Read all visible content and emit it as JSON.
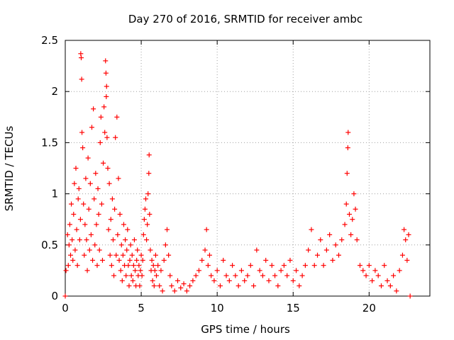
{
  "chart_data": {
    "type": "scatter",
    "title": "Day 270 of 2016, SRMTID for receiver ambc",
    "xlabel": "GPS time / hours",
    "ylabel": "SRMTID / TECUs",
    "xlim": [
      0,
      24
    ],
    "ylim": [
      0,
      2.5
    ],
    "xticks": [
      "0",
      "5",
      "10",
      "15",
      "20"
    ],
    "yticks": [
      "0",
      "0.5",
      "1",
      "1.5",
      "2",
      "2.5"
    ],
    "grid": true,
    "marker": "+",
    "color": "#ff0000",
    "series": [
      {
        "name": "SRMTID",
        "points": [
          [
            0.0,
            0.0
          ],
          [
            0.05,
            0.25
          ],
          [
            0.15,
            0.6
          ],
          [
            0.2,
            0.3
          ],
          [
            0.25,
            0.5
          ],
          [
            0.3,
            0.7
          ],
          [
            0.35,
            0.4
          ],
          [
            0.4,
            0.9
          ],
          [
            0.45,
            0.55
          ],
          [
            0.5,
            0.35
          ],
          [
            0.55,
            0.8
          ],
          [
            0.6,
            1.1
          ],
          [
            0.65,
            0.45
          ],
          [
            0.7,
            1.25
          ],
          [
            0.75,
            0.65
          ],
          [
            0.8,
            0.3
          ],
          [
            0.85,
            0.95
          ],
          [
            0.9,
            1.05
          ],
          [
            0.95,
            0.55
          ],
          [
            1.0,
            0.75
          ],
          [
            1.02,
            2.37
          ],
          [
            1.05,
            2.33
          ],
          [
            1.08,
            2.12
          ],
          [
            1.1,
            1.6
          ],
          [
            1.15,
            1.45
          ],
          [
            1.2,
            0.9
          ],
          [
            1.25,
            0.4
          ],
          [
            1.3,
            0.7
          ],
          [
            1.35,
            1.15
          ],
          [
            1.4,
            0.55
          ],
          [
            1.45,
            0.25
          ],
          [
            1.5,
            1.35
          ],
          [
            1.55,
            0.85
          ],
          [
            1.6,
            0.45
          ],
          [
            1.65,
            1.1
          ],
          [
            1.7,
            0.6
          ],
          [
            1.75,
            1.65
          ],
          [
            1.8,
            0.35
          ],
          [
            1.85,
            1.83
          ],
          [
            1.9,
            0.95
          ],
          [
            1.95,
            0.5
          ],
          [
            2.0,
            1.2
          ],
          [
            2.05,
            0.7
          ],
          [
            2.1,
            0.3
          ],
          [
            2.15,
            1.05
          ],
          [
            2.2,
            0.8
          ],
          [
            2.25,
            0.45
          ],
          [
            2.3,
            1.5
          ],
          [
            2.35,
            1.75
          ],
          [
            2.4,
            0.9
          ],
          [
            2.45,
            0.35
          ],
          [
            2.5,
            1.3
          ],
          [
            2.55,
            1.85
          ],
          [
            2.6,
            1.6
          ],
          [
            2.65,
            2.3
          ],
          [
            2.68,
            2.18
          ],
          [
            2.7,
            1.95
          ],
          [
            2.72,
            2.05
          ],
          [
            2.75,
            1.55
          ],
          [
            2.8,
            1.25
          ],
          [
            2.85,
            0.65
          ],
          [
            2.9,
            1.1
          ],
          [
            2.95,
            0.4
          ],
          [
            3.0,
            0.75
          ],
          [
            3.05,
            0.3
          ],
          [
            3.1,
            0.95
          ],
          [
            3.15,
            0.55
          ],
          [
            3.2,
            0.2
          ],
          [
            3.25,
            0.85
          ],
          [
            3.3,
            1.55
          ],
          [
            3.35,
            0.4
          ],
          [
            3.4,
            1.75
          ],
          [
            3.45,
            0.6
          ],
          [
            3.5,
            1.15
          ],
          [
            3.55,
            0.35
          ],
          [
            3.6,
            0.8
          ],
          [
            3.65,
            0.25
          ],
          [
            3.7,
            0.5
          ],
          [
            3.75,
            0.15
          ],
          [
            3.8,
            0.4
          ],
          [
            3.85,
            0.7
          ],
          [
            3.9,
            0.3
          ],
          [
            3.95,
            0.55
          ],
          [
            4.0,
            0.2
          ],
          [
            4.05,
            0.45
          ],
          [
            4.1,
            0.65
          ],
          [
            4.15,
            0.3
          ],
          [
            4.2,
            0.1
          ],
          [
            4.25,
            0.35
          ],
          [
            4.3,
            0.5
          ],
          [
            4.35,
            0.2
          ],
          [
            4.4,
            0.4
          ],
          [
            4.45,
            0.15
          ],
          [
            4.5,
            0.3
          ],
          [
            4.55,
            0.55
          ],
          [
            4.6,
            0.25
          ],
          [
            4.65,
            0.1
          ],
          [
            4.7,
            0.35
          ],
          [
            4.75,
            0.45
          ],
          [
            4.8,
            0.2
          ],
          [
            4.85,
            0.3
          ],
          [
            4.9,
            0.1
          ],
          [
            4.95,
            0.25
          ],
          [
            5.0,
            0.4
          ],
          [
            5.05,
            0.2
          ],
          [
            5.1,
            0.35
          ],
          [
            5.15,
            0.6
          ],
          [
            5.2,
            0.75
          ],
          [
            5.25,
            0.85
          ],
          [
            5.3,
            0.95
          ],
          [
            5.35,
            0.55
          ],
          [
            5.4,
            0.7
          ],
          [
            5.45,
            1.0
          ],
          [
            5.5,
            1.2
          ],
          [
            5.52,
            1.38
          ],
          [
            5.55,
            0.8
          ],
          [
            5.6,
            0.45
          ],
          [
            5.65,
            0.25
          ],
          [
            5.7,
            0.35
          ],
          [
            5.75,
            0.15
          ],
          [
            5.8,
            0.3
          ],
          [
            5.85,
            0.1
          ],
          [
            5.9,
            0.25
          ],
          [
            5.95,
            0.4
          ],
          [
            6.0,
            0.2
          ],
          [
            6.1,
            0.3
          ],
          [
            6.2,
            0.1
          ],
          [
            6.3,
            0.25
          ],
          [
            6.4,
            0.05
          ],
          [
            6.5,
            0.35
          ],
          [
            6.6,
            0.5
          ],
          [
            6.7,
            0.65
          ],
          [
            6.8,
            0.4
          ],
          [
            6.9,
            0.2
          ],
          [
            7.0,
            0.1
          ],
          [
            7.2,
            0.05
          ],
          [
            7.4,
            0.15
          ],
          [
            7.6,
            0.08
          ],
          [
            7.8,
            0.12
          ],
          [
            8.0,
            0.05
          ],
          [
            8.2,
            0.1
          ],
          [
            8.4,
            0.15
          ],
          [
            8.6,
            0.2
          ],
          [
            8.8,
            0.25
          ],
          [
            9.0,
            0.35
          ],
          [
            9.2,
            0.45
          ],
          [
            9.3,
            0.65
          ],
          [
            9.4,
            0.3
          ],
          [
            9.5,
            0.4
          ],
          [
            9.6,
            0.2
          ],
          [
            9.8,
            0.15
          ],
          [
            10.0,
            0.25
          ],
          [
            10.2,
            0.1
          ],
          [
            10.4,
            0.35
          ],
          [
            10.6,
            0.2
          ],
          [
            10.8,
            0.15
          ],
          [
            11.0,
            0.3
          ],
          [
            11.2,
            0.2
          ],
          [
            11.4,
            0.1
          ],
          [
            11.6,
            0.25
          ],
          [
            11.8,
            0.15
          ],
          [
            12.0,
            0.2
          ],
          [
            12.2,
            0.3
          ],
          [
            12.4,
            0.1
          ],
          [
            12.6,
            0.45
          ],
          [
            12.8,
            0.25
          ],
          [
            13.0,
            0.2
          ],
          [
            13.2,
            0.35
          ],
          [
            13.4,
            0.15
          ],
          [
            13.6,
            0.3
          ],
          [
            13.8,
            0.2
          ],
          [
            14.0,
            0.1
          ],
          [
            14.2,
            0.25
          ],
          [
            14.4,
            0.3
          ],
          [
            14.6,
            0.2
          ],
          [
            14.8,
            0.35
          ],
          [
            15.0,
            0.15
          ],
          [
            15.2,
            0.25
          ],
          [
            15.4,
            0.1
          ],
          [
            15.6,
            0.2
          ],
          [
            15.8,
            0.3
          ],
          [
            16.0,
            0.45
          ],
          [
            16.2,
            0.65
          ],
          [
            16.4,
            0.3
          ],
          [
            16.6,
            0.4
          ],
          [
            16.8,
            0.55
          ],
          [
            17.0,
            0.3
          ],
          [
            17.2,
            0.45
          ],
          [
            17.4,
            0.6
          ],
          [
            17.6,
            0.35
          ],
          [
            17.8,
            0.5
          ],
          [
            18.0,
            0.4
          ],
          [
            18.2,
            0.55
          ],
          [
            18.4,
            0.7
          ],
          [
            18.5,
            0.9
          ],
          [
            18.55,
            1.2
          ],
          [
            18.6,
            1.45
          ],
          [
            18.62,
            1.6
          ],
          [
            18.7,
            0.8
          ],
          [
            18.8,
            0.6
          ],
          [
            18.9,
            0.75
          ],
          [
            19.0,
            1.0
          ],
          [
            19.1,
            0.85
          ],
          [
            19.2,
            0.55
          ],
          [
            19.4,
            0.3
          ],
          [
            19.6,
            0.25
          ],
          [
            19.8,
            0.2
          ],
          [
            20.0,
            0.3
          ],
          [
            20.2,
            0.15
          ],
          [
            20.4,
            0.25
          ],
          [
            20.6,
            0.2
          ],
          [
            20.8,
            0.1
          ],
          [
            21.0,
            0.3
          ],
          [
            21.2,
            0.15
          ],
          [
            21.4,
            0.1
          ],
          [
            21.6,
            0.2
          ],
          [
            21.8,
            0.05
          ],
          [
            22.0,
            0.25
          ],
          [
            22.2,
            0.4
          ],
          [
            22.3,
            0.65
          ],
          [
            22.4,
            0.55
          ],
          [
            22.5,
            0.35
          ],
          [
            22.6,
            0.6
          ],
          [
            22.7,
            0.0
          ]
        ]
      }
    ]
  }
}
